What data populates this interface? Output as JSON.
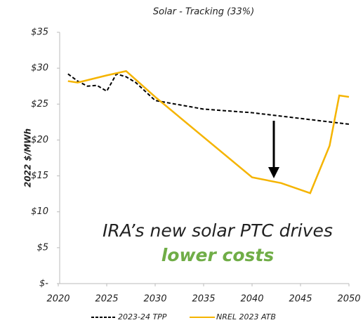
{
  "chart_data": {
    "type": "line",
    "title": "Solar - Tracking (33%)",
    "y_label": "2022 $/MWh",
    "xlim": [
      2020,
      2050
    ],
    "xticks": [
      2020,
      2025,
      2030,
      2035,
      2040,
      2045,
      2050
    ],
    "ylim": [
      0,
      35
    ],
    "yticks": [
      {
        "value": 0,
        "label": "$-"
      },
      {
        "value": 5,
        "label": "$5"
      },
      {
        "value": 10,
        "label": "$10"
      },
      {
        "value": 15,
        "label": "$15"
      },
      {
        "value": 20,
        "label": "$20"
      },
      {
        "value": 25,
        "label": "$25"
      },
      {
        "value": 30,
        "label": "$30"
      },
      {
        "value": 35,
        "label": "$35"
      }
    ],
    "series": [
      {
        "name": "2023-24 TPP",
        "color": "#000000",
        "dashed": true,
        "x": [
          2021,
          2022,
          2023,
          2024,
          2025,
          2026,
          2027,
          2028,
          2030,
          2035,
          2040,
          2045,
          2050
        ],
        "values": [
          29.2,
          28.2,
          27.5,
          27.6,
          26.8,
          29.2,
          28.8,
          28.0,
          25.5,
          24.3,
          23.8,
          23.0,
          22.2
        ]
      },
      {
        "name": "NREL 2023 ATB",
        "color": "#f5b400",
        "dashed": false,
        "x": [
          2021,
          2022,
          2025,
          2027,
          2030,
          2040,
          2043,
          2046,
          2048,
          2049,
          2050
        ],
        "values": [
          28.2,
          28.0,
          29.0,
          29.6,
          26.0,
          14.8,
          14.0,
          12.6,
          19.2,
          26.2,
          26.0
        ]
      }
    ],
    "annotation": "IRA’s new solar PTC drives",
    "annotation_highlight": "lower costs"
  }
}
